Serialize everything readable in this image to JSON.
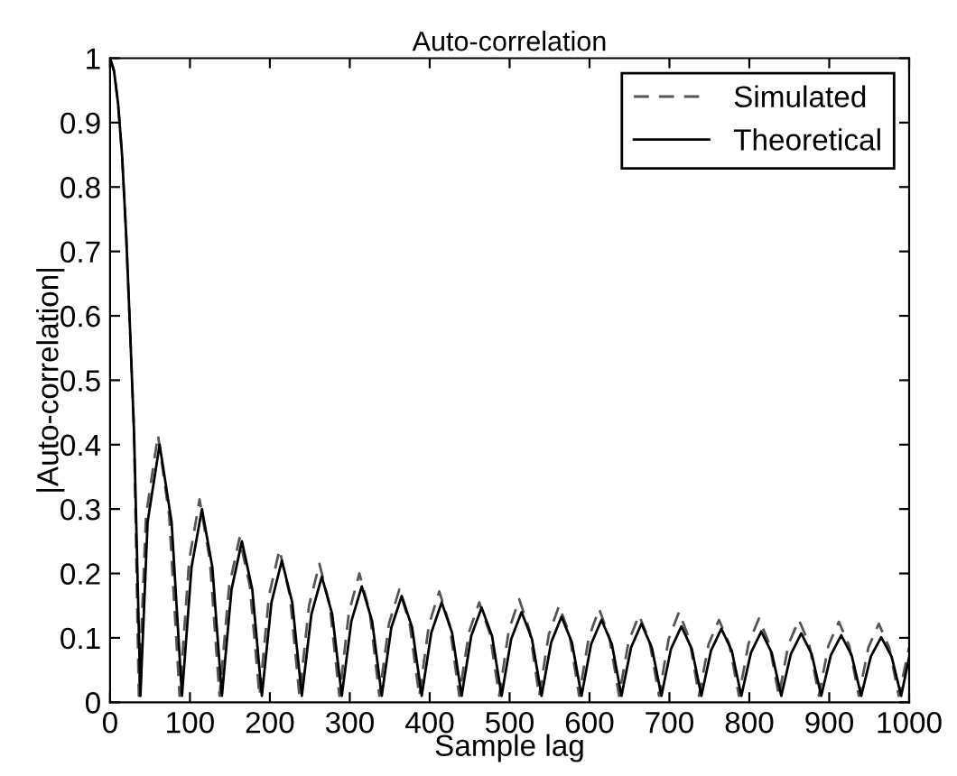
{
  "chart_data": {
    "type": "line",
    "title": "Auto-correlation",
    "xlabel": "Sample lag",
    "ylabel": "|Auto-correlation|",
    "xlim": [
      0,
      1000
    ],
    "ylim": [
      0,
      1
    ],
    "xticks": [
      0,
      100,
      200,
      300,
      400,
      500,
      600,
      700,
      800,
      900,
      1000
    ],
    "yticks": [
      0,
      0.1,
      0.2,
      0.3,
      0.4,
      0.5,
      0.6,
      0.7,
      0.8,
      0.9,
      1
    ],
    "grid": false,
    "legend": "top right",
    "marker": "none",
    "series": [
      {
        "name": "Simulated",
        "color": "#555555",
        "line_style": "dashed",
        "x": [
          0,
          5,
          10,
          15,
          20,
          25,
          30,
          36,
          45,
          60,
          74,
          87,
          99,
          112,
          125,
          137,
          149,
          162,
          175,
          187,
          199,
          212,
          225,
          237,
          249,
          262,
          275,
          287,
          299,
          312,
          325,
          337,
          349,
          362,
          375,
          387,
          399,
          412,
          425,
          437,
          449,
          462,
          475,
          487,
          499,
          512,
          525,
          537,
          549,
          562,
          575,
          587,
          599,
          612,
          625,
          637,
          649,
          662,
          675,
          687,
          699,
          712,
          725,
          737,
          749,
          762,
          775,
          787,
          799,
          812,
          825,
          837,
          849,
          862,
          875,
          887,
          899,
          912,
          925,
          937,
          949,
          962,
          975,
          987,
          1000
        ],
        "values": [
          1,
          0.98,
          0.93,
          0.85,
          0.73,
          0.58,
          0.42,
          0.01,
          0.29,
          0.415,
          0.29,
          0.01,
          0.22,
          0.315,
          0.22,
          0.01,
          0.18,
          0.255,
          0.18,
          0.01,
          0.166,
          0.237,
          0.166,
          0.01,
          0.15,
          0.215,
          0.15,
          0.01,
          0.14,
          0.2,
          0.14,
          0.01,
          0.122,
          0.175,
          0.122,
          0.01,
          0.12,
          0.172,
          0.12,
          0.01,
          0.108,
          0.155,
          0.108,
          0.01,
          0.112,
          0.16,
          0.112,
          0.01,
          0.105,
          0.15,
          0.105,
          0.01,
          0.1,
          0.145,
          0.1,
          0.01,
          0.095,
          0.135,
          0.095,
          0.01,
          0.098,
          0.14,
          0.098,
          0.01,
          0.09,
          0.128,
          0.09,
          0.01,
          0.091,
          0.13,
          0.091,
          0.01,
          0.09,
          0.128,
          0.09,
          0.01,
          0.088,
          0.125,
          0.088,
          0.01,
          0.085,
          0.122,
          0.085,
          0.01,
          0.085
        ]
      },
      {
        "name": "Theoretical",
        "color": "#000000",
        "line_style": "solid",
        "x": [
          0,
          5,
          10,
          15,
          20,
          25,
          30,
          38,
          47,
          62,
          77,
          90,
          102,
          115,
          128,
          140,
          152,
          165,
          178,
          190,
          202,
          215,
          228,
          240,
          252,
          265,
          278,
          290,
          302,
          315,
          328,
          340,
          352,
          365,
          378,
          390,
          402,
          415,
          428,
          440,
          452,
          465,
          478,
          490,
          502,
          515,
          528,
          540,
          552,
          565,
          578,
          590,
          602,
          615,
          628,
          640,
          652,
          665,
          678,
          690,
          702,
          715,
          728,
          740,
          752,
          765,
          778,
          790,
          802,
          815,
          828,
          840,
          852,
          865,
          878,
          890,
          902,
          915,
          928,
          940,
          952,
          965,
          978,
          990,
          1000
        ],
        "values": [
          1,
          0.98,
          0.93,
          0.85,
          0.73,
          0.58,
          0.42,
          0.01,
          0.28,
          0.4,
          0.28,
          0.01,
          0.21,
          0.3,
          0.21,
          0.01,
          0.175,
          0.25,
          0.175,
          0.01,
          0.155,
          0.22,
          0.155,
          0.01,
          0.137,
          0.195,
          0.137,
          0.01,
          0.126,
          0.18,
          0.126,
          0.01,
          0.116,
          0.165,
          0.116,
          0.01,
          0.108,
          0.155,
          0.108,
          0.01,
          0.103,
          0.147,
          0.103,
          0.01,
          0.098,
          0.14,
          0.098,
          0.01,
          0.093,
          0.133,
          0.093,
          0.01,
          0.09,
          0.128,
          0.09,
          0.01,
          0.085,
          0.122,
          0.085,
          0.01,
          0.083,
          0.118,
          0.083,
          0.01,
          0.08,
          0.114,
          0.08,
          0.01,
          0.077,
          0.11,
          0.077,
          0.01,
          0.075,
          0.107,
          0.075,
          0.01,
          0.073,
          0.104,
          0.073,
          0.01,
          0.071,
          0.101,
          0.071,
          0.01,
          0.07
        ]
      }
    ]
  }
}
